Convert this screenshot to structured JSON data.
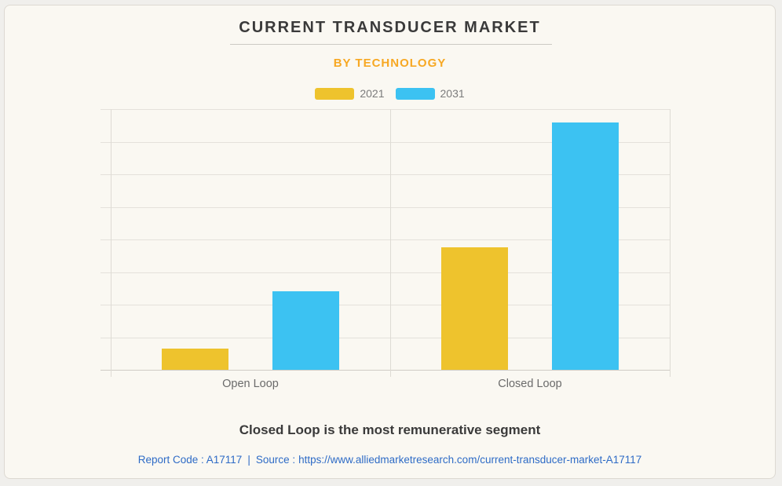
{
  "page": {
    "background_color": "#f0efec",
    "card_background_color": "#faf8f2"
  },
  "header": {
    "title": "CURRENT TRANSDUCER MARKET",
    "subtitle": "BY TECHNOLOGY",
    "title_color": "#3a3a3a",
    "subtitle_color": "#f7a823"
  },
  "legend": [
    {
      "label": "2021",
      "color": "#eec32d"
    },
    {
      "label": "2031",
      "color": "#3cc2f2"
    }
  ],
  "chart_data": {
    "type": "bar",
    "title": "CURRENT TRANSDUCER MARKET",
    "subtitle": "BY TECHNOLOGY",
    "categories": [
      "Open Loop",
      "Closed Loop"
    ],
    "series": [
      {
        "name": "2021",
        "color": "#eec32d",
        "values": [
          8,
          47
        ]
      },
      {
        "name": "2031",
        "color": "#3cc2f2",
        "values": [
          30,
          95
        ]
      }
    ],
    "xlabel": "",
    "ylabel": "",
    "ylim": [
      0,
      100
    ],
    "grid": true,
    "grid_rows": 8,
    "value_axis_labels_visible": false,
    "legend_position": "top",
    "note": "no numeric value labels shown in chart; values estimated from bar heights as % of plot height"
  },
  "footer": {
    "headline": "Closed Loop is the most remunerative segment",
    "report_code_label": "Report Code : A17117",
    "separator": "|",
    "source_label": "Source :",
    "source_url": "https://www.alliedmarketresearch.com/current-transducer-market-A17117",
    "link_color": "#2e6bc6"
  }
}
